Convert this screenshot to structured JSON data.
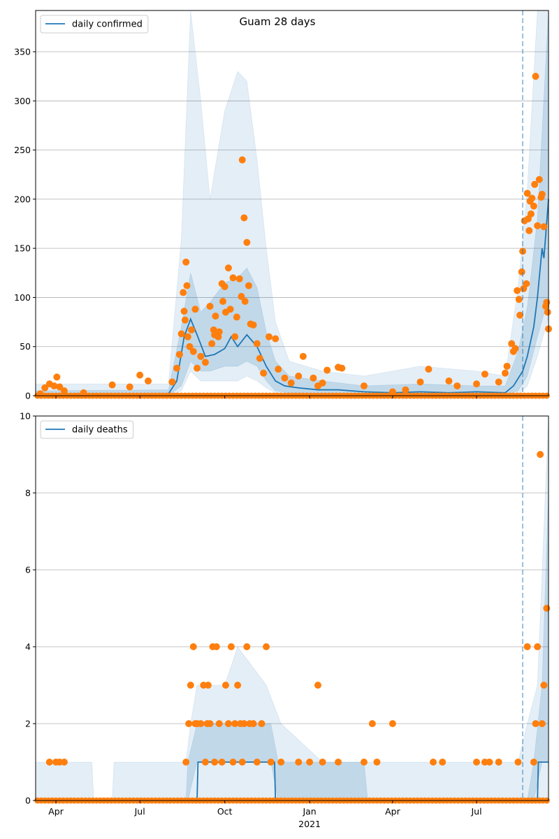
{
  "title": "Guam 28 days",
  "colors": {
    "line": "#1f77b4",
    "points": "#ff7f0e",
    "band": "#1f77b4",
    "grid": "#b0b0b0"
  },
  "chart_data": [
    {
      "type": "line",
      "legend": "daily confirmed",
      "legend_position": "top-left",
      "grid": "horizontal",
      "x_range": [
        "2020-03-10",
        "2021-09-17"
      ],
      "ylim": [
        0,
        392
      ],
      "y_ticks": [
        0,
        50,
        100,
        150,
        200,
        250,
        300,
        350
      ],
      "vline": "2021-08-20",
      "line": [
        [
          "2020-03-10",
          0
        ],
        [
          "2020-08-01",
          2
        ],
        [
          "2020-08-10",
          15
        ],
        [
          "2020-08-18",
          60
        ],
        [
          "2020-08-25",
          78
        ],
        [
          "2020-09-01",
          62
        ],
        [
          "2020-09-10",
          40
        ],
        [
          "2020-09-20",
          42
        ],
        [
          "2020-10-01",
          48
        ],
        [
          "2020-10-08",
          60
        ],
        [
          "2020-10-15",
          50
        ],
        [
          "2020-10-25",
          62
        ],
        [
          "2020-11-05",
          50
        ],
        [
          "2020-11-15",
          30
        ],
        [
          "2020-11-25",
          15
        ],
        [
          "2020-12-05",
          10
        ],
        [
          "2020-12-20",
          8
        ],
        [
          "2021-01-10",
          6
        ],
        [
          "2021-02-01",
          6
        ],
        [
          "2021-03-01",
          4
        ],
        [
          "2021-04-01",
          3
        ],
        [
          "2021-05-01",
          4
        ],
        [
          "2021-06-01",
          3
        ],
        [
          "2021-07-01",
          4
        ],
        [
          "2021-08-01",
          3
        ],
        [
          "2021-08-10",
          10
        ],
        [
          "2021-08-20",
          25
        ],
        [
          "2021-08-25",
          40
        ],
        [
          "2021-09-01",
          70
        ],
        [
          "2021-09-05",
          100
        ],
        [
          "2021-09-10",
          150
        ],
        [
          "2021-09-12",
          140
        ],
        [
          "2021-09-17",
          200
        ]
      ],
      "band_inner": [
        [
          "2020-03-10",
          0,
          5
        ],
        [
          "2020-08-01",
          0,
          6
        ],
        [
          "2020-08-15",
          10,
          70
        ],
        [
          "2020-08-25",
          35,
          125
        ],
        [
          "2020-09-05",
          25,
          85
        ],
        [
          "2020-09-15",
          25,
          95
        ],
        [
          "2020-10-01",
          30,
          115
        ],
        [
          "2020-10-15",
          30,
          120
        ],
        [
          "2020-10-25",
          35,
          130
        ],
        [
          "2020-11-05",
          30,
          110
        ],
        [
          "2020-11-15",
          15,
          65
        ],
        [
          "2020-11-25",
          5,
          35
        ],
        [
          "2020-12-10",
          3,
          20
        ],
        [
          "2021-01-15",
          2,
          15
        ],
        [
          "2021-03-01",
          1,
          10
        ],
        [
          "2021-05-01",
          2,
          12
        ],
        [
          "2021-07-01",
          1,
          10
        ],
        [
          "2021-08-01",
          1,
          10
        ],
        [
          "2021-08-15",
          5,
          45
        ],
        [
          "2021-08-25",
          20,
          90
        ],
        [
          "2021-09-05",
          60,
          180
        ],
        [
          "2021-09-17",
          100,
          392
        ]
      ],
      "band_outer": [
        [
          "2020-03-10",
          0,
          12
        ],
        [
          "2020-08-01",
          0,
          12
        ],
        [
          "2020-08-15",
          5,
          160
        ],
        [
          "2020-08-25",
          25,
          392
        ],
        [
          "2020-09-05",
          15,
          300
        ],
        [
          "2020-09-15",
          15,
          200
        ],
        [
          "2020-10-01",
          15,
          290
        ],
        [
          "2020-10-15",
          15,
          330
        ],
        [
          "2020-10-25",
          20,
          320
        ],
        [
          "2020-11-05",
          15,
          240
        ],
        [
          "2020-11-15",
          8,
          150
        ],
        [
          "2020-11-25",
          3,
          75
        ],
        [
          "2020-12-10",
          1,
          35
        ],
        [
          "2021-01-15",
          0,
          25
        ],
        [
          "2021-03-01",
          0,
          20
        ],
        [
          "2021-05-01",
          0,
          30
        ],
        [
          "2021-07-01",
          0,
          25
        ],
        [
          "2021-08-01",
          0,
          20
        ],
        [
          "2021-08-15",
          2,
          110
        ],
        [
          "2021-08-25",
          10,
          210
        ],
        [
          "2021-09-05",
          40,
          392
        ],
        [
          "2021-09-17",
          80,
          392
        ]
      ],
      "points": [
        [
          "2020-03-15",
          2
        ],
        [
          "2020-03-20",
          8
        ],
        [
          "2020-03-25",
          12
        ],
        [
          "2020-03-30",
          10
        ],
        [
          "2020-04-02",
          19
        ],
        [
          "2020-04-05",
          9
        ],
        [
          "2020-04-10",
          5
        ],
        [
          "2020-05-01",
          3
        ],
        [
          "2020-06-01",
          11
        ],
        [
          "2020-06-20",
          9
        ],
        [
          "2020-07-01",
          21
        ],
        [
          "2020-07-10",
          15
        ],
        [
          "2020-08-05",
          14
        ],
        [
          "2020-08-10",
          28
        ],
        [
          "2020-08-13",
          42
        ],
        [
          "2020-08-15",
          63
        ],
        [
          "2020-08-17",
          105
        ],
        [
          "2020-08-18",
          86
        ],
        [
          "2020-08-19",
          77
        ],
        [
          "2020-08-20",
          136
        ],
        [
          "2020-08-21",
          112
        ],
        [
          "2020-08-22",
          60
        ],
        [
          "2020-08-24",
          50
        ],
        [
          "2020-08-26",
          67
        ],
        [
          "2020-08-28",
          45
        ],
        [
          "2020-08-30",
          88
        ],
        [
          "2020-09-01",
          28
        ],
        [
          "2020-09-05",
          40
        ],
        [
          "2020-09-10",
          34
        ],
        [
          "2020-09-15",
          91
        ],
        [
          "2020-09-17",
          53
        ],
        [
          "2020-09-19",
          67
        ],
        [
          "2020-09-20",
          62
        ],
        [
          "2020-09-21",
          81
        ],
        [
          "2020-09-24",
          60
        ],
        [
          "2020-09-25",
          65
        ],
        [
          "2020-09-28",
          114
        ],
        [
          "2020-09-29",
          96
        ],
        [
          "2020-10-01",
          111
        ],
        [
          "2020-10-02",
          85
        ],
        [
          "2020-10-05",
          130
        ],
        [
          "2020-10-07",
          88
        ],
        [
          "2020-10-10",
          120
        ],
        [
          "2020-10-12",
          60
        ],
        [
          "2020-10-14",
          80
        ],
        [
          "2020-10-17",
          119
        ],
        [
          "2020-10-19",
          101
        ],
        [
          "2020-10-20",
          240
        ],
        [
          "2020-10-22",
          181
        ],
        [
          "2020-10-23",
          96
        ],
        [
          "2020-10-25",
          156
        ],
        [
          "2020-10-27",
          112
        ],
        [
          "2020-10-29",
          73
        ],
        [
          "2020-11-01",
          72
        ],
        [
          "2020-11-05",
          53
        ],
        [
          "2020-11-08",
          38
        ],
        [
          "2020-11-12",
          23
        ],
        [
          "2020-11-18",
          60
        ],
        [
          "2020-11-25",
          58
        ],
        [
          "2020-11-28",
          27
        ],
        [
          "2020-12-05",
          18
        ],
        [
          "2020-12-12",
          13
        ],
        [
          "2020-12-20",
          20
        ],
        [
          "2020-12-25",
          40
        ],
        [
          "2021-01-05",
          18
        ],
        [
          "2021-01-10",
          10
        ],
        [
          "2021-01-15",
          13
        ],
        [
          "2021-01-20",
          26
        ],
        [
          "2021-02-01",
          29
        ],
        [
          "2021-02-05",
          28
        ],
        [
          "2021-03-01",
          10
        ],
        [
          "2021-04-01",
          4
        ],
        [
          "2021-04-15",
          6
        ],
        [
          "2021-05-01",
          14
        ],
        [
          "2021-05-10",
          27
        ],
        [
          "2021-06-01",
          15
        ],
        [
          "2021-06-10",
          10
        ],
        [
          "2021-07-01",
          12
        ],
        [
          "2021-07-10",
          22
        ],
        [
          "2021-07-25",
          14
        ],
        [
          "2021-08-01",
          23
        ],
        [
          "2021-08-03",
          30
        ],
        [
          "2021-08-08",
          53
        ],
        [
          "2021-08-10",
          45
        ],
        [
          "2021-08-12",
          48
        ],
        [
          "2021-08-14",
          107
        ],
        [
          "2021-08-16",
          98
        ],
        [
          "2021-08-17",
          82
        ],
        [
          "2021-08-19",
          126
        ],
        [
          "2021-08-20",
          147
        ],
        [
          "2021-08-21",
          109
        ],
        [
          "2021-08-22",
          178
        ],
        [
          "2021-08-24",
          114
        ],
        [
          "2021-08-25",
          206
        ],
        [
          "2021-08-26",
          180
        ],
        [
          "2021-08-27",
          168
        ],
        [
          "2021-08-28",
          198
        ],
        [
          "2021-08-29",
          185
        ],
        [
          "2021-08-30",
          201
        ],
        [
          "2021-09-01",
          193
        ],
        [
          "2021-09-02",
          215
        ],
        [
          "2021-09-03",
          325
        ],
        [
          "2021-09-05",
          173
        ],
        [
          "2021-09-07",
          220
        ],
        [
          "2021-09-09",
          202
        ],
        [
          "2021-09-10",
          205
        ],
        [
          "2021-09-12",
          172
        ],
        [
          "2021-09-14",
          91
        ],
        [
          "2021-09-15",
          95
        ],
        [
          "2021-09-16",
          85
        ],
        [
          "2021-09-17",
          68
        ]
      ]
    },
    {
      "type": "line",
      "legend": "daily deaths",
      "legend_position": "top-left",
      "grid": "horizontal",
      "x_range": [
        "2020-03-10",
        "2021-09-17"
      ],
      "ylim": [
        0,
        10
      ],
      "y_ticks": [
        0,
        2,
        4,
        6,
        8,
        10
      ],
      "x_ticks": [
        "Apr",
        "Jul",
        "Oct",
        "Jan",
        "Apr",
        "Jul"
      ],
      "x_tick_dates": [
        "2020-04-01",
        "2020-07-01",
        "2020-10-01",
        "2021-01-01",
        "2021-04-01",
        "2021-07-01"
      ],
      "x_year_label": "2021",
      "vline": "2021-08-20",
      "line": [
        [
          "2020-03-10",
          0
        ],
        [
          "2020-09-01",
          0
        ],
        [
          "2020-09-02",
          1
        ],
        [
          "2020-11-24",
          1
        ],
        [
          "2020-11-25",
          0
        ],
        [
          "2021-09-05",
          0
        ],
        [
          "2021-09-06",
          1
        ],
        [
          "2021-09-17",
          1
        ]
      ],
      "band_inner": [
        [
          "2020-03-10",
          0,
          0
        ],
        [
          "2020-08-20",
          0,
          0
        ],
        [
          "2020-08-22",
          0,
          1
        ],
        [
          "2020-09-01",
          1,
          2
        ],
        [
          "2020-10-01",
          1,
          2
        ],
        [
          "2020-11-20",
          1,
          2
        ],
        [
          "2020-11-28",
          0,
          1
        ],
        [
          "2021-03-01",
          0,
          1
        ],
        [
          "2021-03-05",
          0,
          0
        ],
        [
          "2021-08-25",
          0,
          0
        ],
        [
          "2021-09-01",
          0,
          1
        ],
        [
          "2021-09-10",
          1,
          3
        ],
        [
          "2021-09-17",
          1,
          8
        ]
      ],
      "band_outer": [
        [
          "2020-03-10",
          0,
          1
        ],
        [
          "2020-05-10",
          0,
          1
        ],
        [
          "2020-05-12",
          0,
          0
        ],
        [
          "2020-06-01",
          0,
          0
        ],
        [
          "2020-06-03",
          0,
          1
        ],
        [
          "2020-08-20",
          0,
          1
        ],
        [
          "2020-08-25",
          0,
          2
        ],
        [
          "2020-09-01",
          0,
          3
        ],
        [
          "2020-10-01",
          0,
          3
        ],
        [
          "2020-10-15",
          0,
          4
        ],
        [
          "2020-11-15",
          0,
          3
        ],
        [
          "2020-12-01",
          0,
          2
        ],
        [
          "2021-01-15",
          0,
          1
        ],
        [
          "2021-08-15",
          0,
          1
        ],
        [
          "2021-08-25",
          0,
          2
        ],
        [
          "2021-09-05",
          0,
          3
        ],
        [
          "2021-09-17",
          0,
          10
        ]
      ],
      "points": [
        [
          "2020-03-25",
          1
        ],
        [
          "2020-04-01",
          1
        ],
        [
          "2020-04-05",
          1
        ],
        [
          "2020-04-10",
          1
        ],
        [
          "2020-08-20",
          1
        ],
        [
          "2020-08-23",
          2
        ],
        [
          "2020-08-25",
          3
        ],
        [
          "2020-08-28",
          4
        ],
        [
          "2020-08-30",
          2
        ],
        [
          "2020-09-01",
          2
        ],
        [
          "2020-09-05",
          2
        ],
        [
          "2020-09-08",
          3
        ],
        [
          "2020-09-10",
          1
        ],
        [
          "2020-09-12",
          2
        ],
        [
          "2020-09-13",
          3
        ],
        [
          "2020-09-15",
          2
        ],
        [
          "2020-09-18",
          4
        ],
        [
          "2020-09-20",
          1
        ],
        [
          "2020-09-22",
          4
        ],
        [
          "2020-09-25",
          2
        ],
        [
          "2020-09-28",
          1
        ],
        [
          "2020-10-02",
          3
        ],
        [
          "2020-10-05",
          2
        ],
        [
          "2020-10-08",
          4
        ],
        [
          "2020-10-10",
          1
        ],
        [
          "2020-10-12",
          2
        ],
        [
          "2020-10-15",
          3
        ],
        [
          "2020-10-18",
          2
        ],
        [
          "2020-10-20",
          1
        ],
        [
          "2020-10-22",
          2
        ],
        [
          "2020-10-25",
          4
        ],
        [
          "2020-10-28",
          2
        ],
        [
          "2020-11-01",
          2
        ],
        [
          "2020-11-05",
          1
        ],
        [
          "2020-11-10",
          2
        ],
        [
          "2020-11-15",
          4
        ],
        [
          "2020-11-20",
          1
        ],
        [
          "2020-12-01",
          1
        ],
        [
          "2020-12-20",
          1
        ],
        [
          "2021-01-01",
          1
        ],
        [
          "2021-01-10",
          3
        ],
        [
          "2021-01-15",
          1
        ],
        [
          "2021-02-01",
          1
        ],
        [
          "2021-03-01",
          1
        ],
        [
          "2021-03-10",
          2
        ],
        [
          "2021-03-15",
          1
        ],
        [
          "2021-04-01",
          2
        ],
        [
          "2021-05-15",
          1
        ],
        [
          "2021-05-25",
          1
        ],
        [
          "2021-07-01",
          1
        ],
        [
          "2021-07-10",
          1
        ],
        [
          "2021-07-15",
          1
        ],
        [
          "2021-07-25",
          1
        ],
        [
          "2021-08-15",
          1
        ],
        [
          "2021-08-25",
          4
        ],
        [
          "2021-09-01",
          1
        ],
        [
          "2021-09-03",
          2
        ],
        [
          "2021-09-05",
          4
        ],
        [
          "2021-09-08",
          9
        ],
        [
          "2021-09-10",
          2
        ],
        [
          "2021-09-12",
          3
        ],
        [
          "2021-09-15",
          5
        ]
      ]
    }
  ]
}
